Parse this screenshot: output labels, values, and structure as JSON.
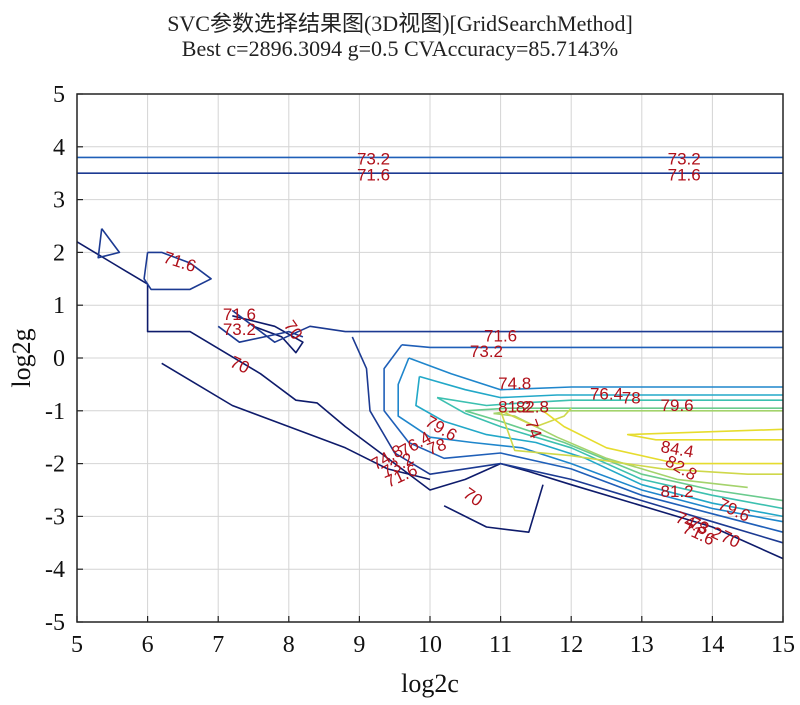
{
  "chart_data": {
    "type": "contour",
    "title": "SVC参数选择结果图(3D视图)[GridSearchMethod]",
    "subtitle": "Best c=2896.3094 g=0.5 CVAccuracy=85.7143%",
    "xlabel": "log2c",
    "ylabel": "log2g",
    "xlim": [
      5,
      15
    ],
    "ylim": [
      -5,
      5
    ],
    "xticks": [
      "5",
      "6",
      "7",
      "8",
      "9",
      "10",
      "11",
      "12",
      "13",
      "14",
      "15"
    ],
    "yticks": [
      "5",
      "4",
      "3",
      "2",
      "1",
      "0",
      "-1",
      "-2",
      "-3",
      "-4",
      "-5"
    ],
    "grid": true,
    "contour_levels": [
      {
        "level": 70,
        "label": "70",
        "color": "#0e1b6b"
      },
      {
        "level": 71.6,
        "label": "71.6",
        "color": "#1c3a92"
      },
      {
        "level": 73.2,
        "label": "73.2",
        "color": "#1f5fb8"
      },
      {
        "level": 74.8,
        "label": "74.8",
        "color": "#1f86cc"
      },
      {
        "level": 76.4,
        "label": "76.4",
        "color": "#22a8c8"
      },
      {
        "level": 78,
        "label": "78",
        "color": "#3cc0b0"
      },
      {
        "level": 79.6,
        "label": "79.6",
        "color": "#6acb8e"
      },
      {
        "level": 81.2,
        "label": "81.2",
        "color": "#a4d36c"
      },
      {
        "level": 82.8,
        "label": "82.8",
        "color": "#cfd84a"
      },
      {
        "level": 84.4,
        "label": "84.4",
        "color": "#e6dc2e"
      }
    ],
    "best": {
      "log2c": 11.5,
      "log2g": -1,
      "c": 2896.3094,
      "g": 0.5,
      "accuracy_percent": 85.7143
    }
  }
}
